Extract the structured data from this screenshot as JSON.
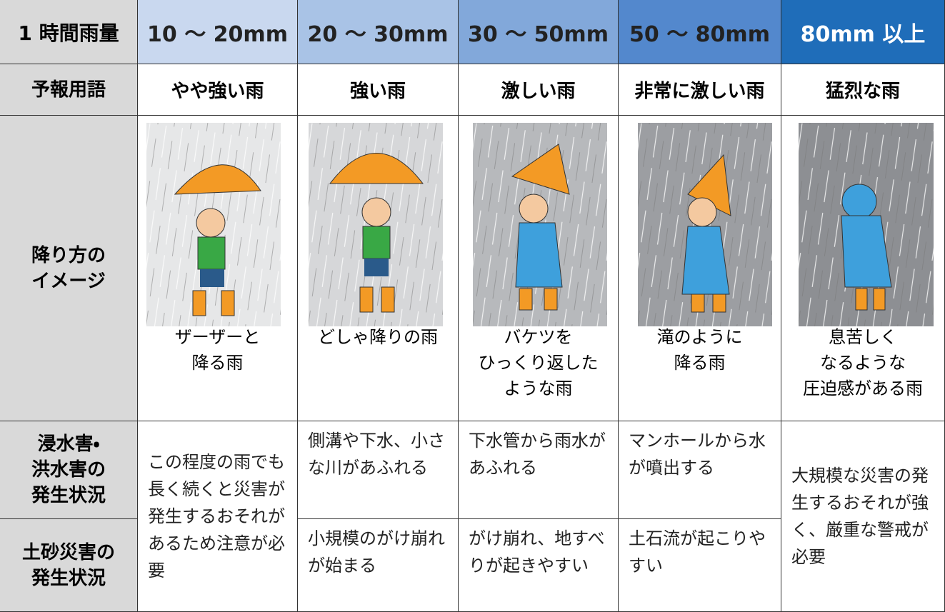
{
  "header": {
    "label": "1 時間雨量",
    "ranges": [
      "10 〜 20mm",
      "20 〜 30mm",
      "30 〜 50mm",
      "50 〜 80mm",
      "80mm 以上"
    ]
  },
  "forecast": {
    "label": "予報用語",
    "terms": [
      "やや強い雨",
      "強い雨",
      "激しい雨",
      "非常に激しい雨",
      "猛烈な雨"
    ]
  },
  "image_row": {
    "label": [
      "降り方の",
      "イメージ"
    ],
    "captions": [
      [
        "ザーザーと",
        "降る雨"
      ],
      [
        "どしゃ降りの雨"
      ],
      [
        "バケツを",
        "ひっくり返した",
        "ような雨"
      ],
      [
        "滝のように",
        "降る雨"
      ],
      [
        "息苦しく",
        "なるような",
        "圧迫感がある雨"
      ]
    ]
  },
  "flood": {
    "label": [
      "浸水害・",
      "洪水害の",
      "発生状況"
    ],
    "descriptions": [
      "この程度の雨でも長く続くと災害が発生するおそれがあるため注意が必要",
      "側溝や下水、小さな川があふれる",
      "下水管から雨水があふれる",
      "マンホールから水が噴出する",
      "大規模な災害の発生するおそれが強く、厳重な警戒が必要"
    ]
  },
  "landslide": {
    "label": [
      "土砂災害の",
      "発生状況"
    ],
    "descriptions": [
      "小規模のがけ崩れが始まる",
      "がけ崩れ、地すべりが起きやすい",
      "土石流が起こりやすい"
    ]
  }
}
